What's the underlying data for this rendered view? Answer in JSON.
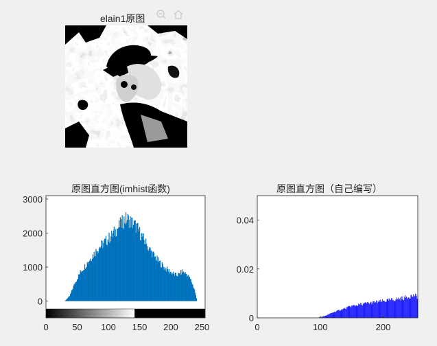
{
  "figure": {
    "image_title": "elain1原图",
    "toolbar": {
      "zoom_out_icon": "zoom-out-icon",
      "home_icon": "home-icon"
    }
  },
  "chart_data": [
    {
      "type": "bar",
      "title": "原图直方图(imhist函数)",
      "xlabel": "",
      "ylabel": "",
      "xlim": [
        0,
        255
      ],
      "ylim": [
        0,
        3100
      ],
      "x_ticks": [
        "0",
        "50",
        "100",
        "150",
        "200",
        "250"
      ],
      "y_ticks": [
        "0",
        "1000",
        "2000",
        "3000"
      ],
      "bar_color": "#0072bd",
      "colorbar": {
        "range": [
          0,
          255
        ],
        "threshold": 142
      },
      "envelope": [
        [
          0,
          0
        ],
        [
          30,
          0
        ],
        [
          38,
          150
        ],
        [
          45,
          480
        ],
        [
          55,
          850
        ],
        [
          65,
          1100
        ],
        [
          75,
          1350
        ],
        [
          85,
          1580
        ],
        [
          95,
          1750
        ],
        [
          105,
          1920
        ],
        [
          115,
          2150
        ],
        [
          125,
          2380
        ],
        [
          130,
          2420
        ],
        [
          135,
          2350
        ],
        [
          145,
          2180
        ],
        [
          155,
          1850
        ],
        [
          165,
          1550
        ],
        [
          175,
          1280
        ],
        [
          183,
          1120
        ],
        [
          190,
          980
        ],
        [
          200,
          850
        ],
        [
          208,
          760
        ],
        [
          213,
          780
        ],
        [
          218,
          870
        ],
        [
          225,
          800
        ],
        [
          232,
          620
        ],
        [
          238,
          330
        ],
        [
          242,
          0
        ],
        [
          255,
          0
        ]
      ]
    },
    {
      "type": "bar",
      "title": "原图直方图（自己编写）",
      "xlabel": "",
      "ylabel": "",
      "xlim": [
        0,
        255
      ],
      "ylim": [
        0,
        0.05
      ],
      "x_ticks": [
        "0",
        "100",
        "200"
      ],
      "y_ticks": [
        "0",
        "0.02",
        "0.04"
      ],
      "bar_color": "#0000ff",
      "envelope": [
        [
          0,
          0
        ],
        [
          96,
          0
        ],
        [
          108,
          0.0008
        ],
        [
          120,
          0.0022
        ],
        [
          135,
          0.0035
        ],
        [
          150,
          0.0048
        ],
        [
          170,
          0.0058
        ],
        [
          190,
          0.0065
        ],
        [
          210,
          0.0072
        ],
        [
          230,
          0.008
        ],
        [
          245,
          0.009
        ],
        [
          255,
          0.0088
        ]
      ]
    }
  ]
}
